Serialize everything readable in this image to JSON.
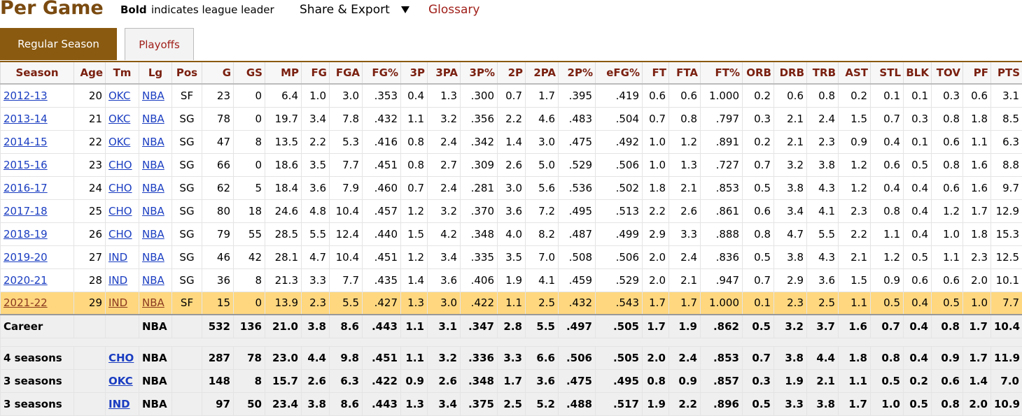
{
  "header": {
    "title": "Per Game",
    "note_bold": "Bold",
    "note_rest": "indicates league leader",
    "share": "Share & Export",
    "glossary": "Glossary"
  },
  "tabs": [
    "Regular Season",
    "Playoffs"
  ],
  "table": {
    "columns": [
      "Season",
      "Age",
      "Tm",
      "Lg",
      "Pos",
      "G",
      "GS",
      "MP",
      "FG",
      "FGA",
      "FG%",
      "3P",
      "3PA",
      "3P%",
      "2P",
      "2PA",
      "2P%",
      "eFG%",
      "FT",
      "FTA",
      "FT%",
      "ORB",
      "DRB",
      "TRB",
      "AST",
      "STL",
      "BLK",
      "TOV",
      "PF",
      "PTS"
    ],
    "highlighted_row": 9,
    "rows": [
      [
        "2012-13",
        "20",
        "OKC",
        "NBA",
        "SF",
        "23",
        "0",
        "6.4",
        "1.0",
        "3.0",
        ".353",
        "0.4",
        "1.3",
        ".300",
        "0.7",
        "1.7",
        ".395",
        ".419",
        "0.6",
        "0.6",
        "1.000",
        "0.2",
        "0.6",
        "0.8",
        "0.2",
        "0.1",
        "0.1",
        "0.3",
        "0.6",
        "3.1"
      ],
      [
        "2013-14",
        "21",
        "OKC",
        "NBA",
        "SG",
        "78",
        "0",
        "19.7",
        "3.4",
        "7.8",
        ".432",
        "1.1",
        "3.2",
        ".356",
        "2.2",
        "4.6",
        ".483",
        ".504",
        "0.7",
        "0.8",
        ".797",
        "0.3",
        "2.1",
        "2.4",
        "1.5",
        "0.7",
        "0.3",
        "0.8",
        "1.8",
        "8.5"
      ],
      [
        "2014-15",
        "22",
        "OKC",
        "NBA",
        "SG",
        "47",
        "8",
        "13.5",
        "2.2",
        "5.3",
        ".416",
        "0.8",
        "2.4",
        ".342",
        "1.4",
        "3.0",
        ".475",
        ".492",
        "1.0",
        "1.2",
        ".891",
        "0.2",
        "2.1",
        "2.3",
        "0.9",
        "0.4",
        "0.1",
        "0.6",
        "1.1",
        "6.3"
      ],
      [
        "2015-16",
        "23",
        "CHO",
        "NBA",
        "SG",
        "66",
        "0",
        "18.6",
        "3.5",
        "7.7",
        ".451",
        "0.8",
        "2.7",
        ".309",
        "2.6",
        "5.0",
        ".529",
        ".506",
        "1.0",
        "1.3",
        ".727",
        "0.7",
        "3.2",
        "3.8",
        "1.2",
        "0.6",
        "0.5",
        "0.8",
        "1.6",
        "8.8"
      ],
      [
        "2016-17",
        "24",
        "CHO",
        "NBA",
        "SG",
        "62",
        "5",
        "18.4",
        "3.6",
        "7.9",
        ".460",
        "0.7",
        "2.4",
        ".281",
        "3.0",
        "5.6",
        ".536",
        ".502",
        "1.8",
        "2.1",
        ".853",
        "0.5",
        "3.8",
        "4.3",
        "1.2",
        "0.4",
        "0.4",
        "0.6",
        "1.6",
        "9.7"
      ],
      [
        "2017-18",
        "25",
        "CHO",
        "NBA",
        "SG",
        "80",
        "18",
        "24.6",
        "4.8",
        "10.4",
        ".457",
        "1.2",
        "3.2",
        ".370",
        "3.6",
        "7.2",
        ".495",
        ".513",
        "2.2",
        "2.6",
        ".861",
        "0.6",
        "3.4",
        "4.1",
        "2.3",
        "0.8",
        "0.4",
        "1.2",
        "1.7",
        "12.9"
      ],
      [
        "2018-19",
        "26",
        "CHO",
        "NBA",
        "SG",
        "79",
        "55",
        "28.5",
        "5.5",
        "12.4",
        ".440",
        "1.5",
        "4.2",
        ".348",
        "4.0",
        "8.2",
        ".487",
        ".499",
        "2.9",
        "3.3",
        ".888",
        "0.8",
        "4.7",
        "5.5",
        "2.2",
        "1.1",
        "0.4",
        "1.0",
        "1.8",
        "15.3"
      ],
      [
        "2019-20",
        "27",
        "IND",
        "NBA",
        "SG",
        "46",
        "42",
        "28.1",
        "4.7",
        "10.4",
        ".451",
        "1.2",
        "3.4",
        ".335",
        "3.5",
        "7.0",
        ".508",
        ".506",
        "2.0",
        "2.4",
        ".836",
        "0.5",
        "3.8",
        "4.3",
        "2.1",
        "1.2",
        "0.5",
        "1.1",
        "2.3",
        "12.5"
      ],
      [
        "2020-21",
        "28",
        "IND",
        "NBA",
        "SG",
        "36",
        "8",
        "21.3",
        "3.3",
        "7.7",
        ".435",
        "1.4",
        "3.6",
        ".406",
        "1.9",
        "4.1",
        ".459",
        ".529",
        "2.0",
        "2.1",
        ".947",
        "0.7",
        "2.9",
        "3.6",
        "1.5",
        "0.9",
        "0.6",
        "0.6",
        "2.0",
        "10.1"
      ],
      [
        "2021-22",
        "29",
        "IND",
        "NBA",
        "SF",
        "15",
        "0",
        "13.9",
        "2.3",
        "5.5",
        ".427",
        "1.3",
        "3.0",
        ".422",
        "1.1",
        "2.5",
        ".432",
        ".543",
        "1.7",
        "1.7",
        "1.000",
        "0.1",
        "2.3",
        "2.5",
        "1.1",
        "0.5",
        "0.4",
        "0.5",
        "1.0",
        "7.7"
      ]
    ],
    "footer": [
      [
        "Career",
        null,
        null,
        "NBA",
        null,
        "532",
        "136",
        "21.0",
        "3.8",
        "8.6",
        ".443",
        "1.1",
        "3.1",
        ".347",
        "2.8",
        "5.5",
        ".497",
        ".505",
        "1.7",
        "1.9",
        ".862",
        "0.5",
        "3.2",
        "3.7",
        "1.6",
        "0.7",
        "0.4",
        "0.8",
        "1.7",
        "10.4"
      ],
      [
        "4 seasons",
        null,
        "CHO",
        "NBA",
        null,
        "287",
        "78",
        "23.0",
        "4.4",
        "9.8",
        ".451",
        "1.1",
        "3.2",
        ".336",
        "3.3",
        "6.6",
        ".506",
        ".505",
        "2.0",
        "2.4",
        ".853",
        "0.7",
        "3.8",
        "4.4",
        "1.8",
        "0.8",
        "0.4",
        "0.9",
        "1.7",
        "11.9"
      ],
      [
        "3 seasons",
        null,
        "OKC",
        "NBA",
        null,
        "148",
        "8",
        "15.7",
        "2.6",
        "6.3",
        ".422",
        "0.9",
        "2.6",
        ".348",
        "1.7",
        "3.6",
        ".475",
        ".495",
        "0.8",
        "0.9",
        ".857",
        "0.3",
        "1.9",
        "2.1",
        "1.1",
        "0.5",
        "0.2",
        "0.6",
        "1.4",
        "7.0"
      ],
      [
        "3 seasons",
        null,
        "IND",
        "NBA",
        null,
        "97",
        "50",
        "23.4",
        "3.8",
        "8.6",
        ".443",
        "1.3",
        "3.4",
        ".375",
        "2.5",
        "5.2",
        ".488",
        ".517",
        "1.9",
        "2.2",
        ".896",
        "0.5",
        "3.3",
        "3.8",
        "1.7",
        "1.0",
        "0.5",
        "0.8",
        "2.0",
        "10.9"
      ]
    ]
  }
}
